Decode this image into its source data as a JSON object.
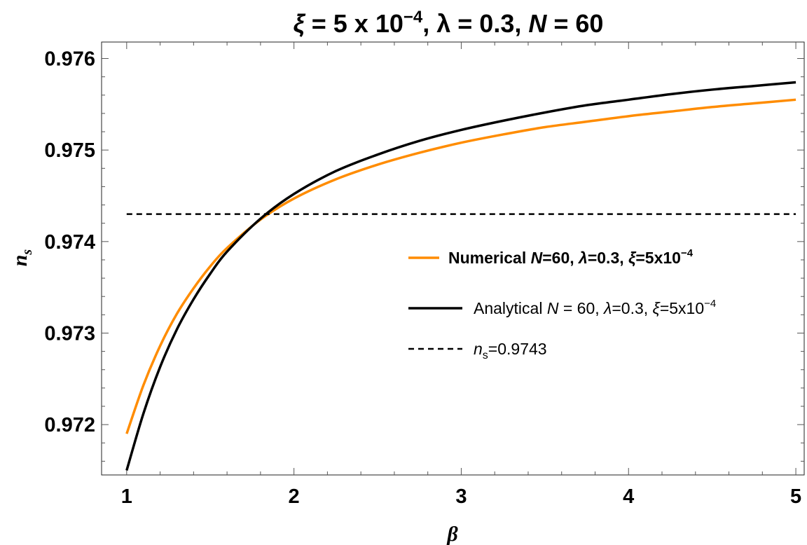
{
  "chart_data": {
    "type": "line",
    "title": {
      "xi_sym": "ξ",
      "xi_val": " = 5 x 10",
      "xi_exp": "−4",
      "lambda_sym": ", λ",
      "lambda_val": " = 0.3, ",
      "n_sym": "N",
      "n_val": " = 60"
    },
    "xlabel": "β",
    "ylabel": {
      "base": "n",
      "sub": "s"
    },
    "xlim": [
      0.85,
      5.05
    ],
    "ylim": [
      0.97145,
      0.97618
    ],
    "x_ticks": [
      1,
      2,
      3,
      4,
      5
    ],
    "y_ticks": [
      0.972,
      0.973,
      0.974,
      0.975,
      0.976
    ],
    "y_tick_labels": [
      "0.972",
      "0.973",
      "0.974",
      "0.975",
      "0.976"
    ],
    "grid": false,
    "legend_position": "right",
    "series": [
      {
        "legend": {
          "pre": "Numerical ",
          "n": "N",
          "mid": "=60, ",
          "lam": "λ",
          "lam_val": "=0.3, ",
          "xi": "ξ",
          "xi_val": "=5x10",
          "exp": "−4"
        },
        "color": "#ff8c00",
        "style": "solid",
        "x": [
          1.0,
          1.1,
          1.2,
          1.3,
          1.4,
          1.5,
          1.6,
          1.8,
          2.0,
          2.25,
          2.5,
          2.75,
          3.0,
          3.25,
          3.5,
          3.75,
          4.0,
          4.25,
          4.5,
          4.75,
          5.0
        ],
        "y": [
          0.9719,
          0.97243,
          0.97286,
          0.97321,
          0.97349,
          0.97373,
          0.97393,
          0.97424,
          0.97447,
          0.97468,
          0.97484,
          0.97497,
          0.97508,
          0.97517,
          0.97525,
          0.97531,
          0.97537,
          0.97542,
          0.97547,
          0.97551,
          0.97555
        ]
      },
      {
        "legend": {
          "pre": "Analytical ",
          "n": "N",
          "mid": " = 60, ",
          "lam": "λ",
          "lam_val": "=0.3, ",
          "xi": "ξ",
          "xi_val": "=5x10",
          "exp": "−4"
        },
        "color": "#000000",
        "style": "solid",
        "x": [
          1.0,
          1.1,
          1.2,
          1.3,
          1.4,
          1.5,
          1.6,
          1.8,
          2.0,
          2.25,
          2.5,
          2.75,
          3.0,
          3.25,
          3.5,
          3.75,
          4.0,
          4.25,
          4.5,
          4.75,
          5.0
        ],
        "y": [
          0.9715,
          0.97212,
          0.97263,
          0.97304,
          0.97337,
          0.97365,
          0.97389,
          0.97425,
          0.97452,
          0.97477,
          0.97495,
          0.9751,
          0.97522,
          0.97532,
          0.97541,
          0.97549,
          0.97555,
          0.97561,
          0.97566,
          0.9757,
          0.97574
        ]
      },
      {
        "legend": {
          "n": "n",
          "sub": "s",
          "val": "=0.9743"
        },
        "color": "#000000",
        "style": "dashed",
        "x": [
          1.0,
          5.0
        ],
        "y": [
          0.9743,
          0.9743
        ]
      }
    ]
  }
}
